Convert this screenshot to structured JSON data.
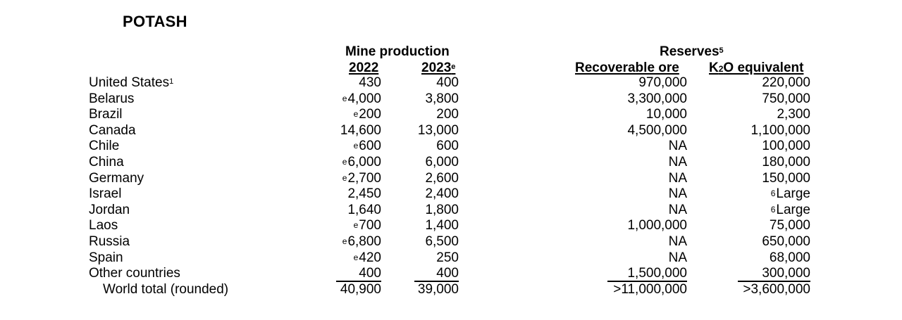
{
  "title": "POTASH",
  "headers": {
    "mine_production": "Mine production",
    "year_2022": "2022",
    "year_2023": "2023",
    "year_2023_sup": "e",
    "reserves": "Reserves",
    "reserves_sup": "5",
    "recoverable_ore": "Recoverable ore",
    "k2o_k": "K",
    "k2o_sub": "2",
    "k2o_rest": "O equivalent"
  },
  "rows": [
    {
      "country": "United States",
      "country_sup": "1",
      "p2022_pre": "",
      "p2022": "430",
      "p2023": "400",
      "ore": "970,000",
      "k2o_pre": "",
      "k2o": "220,000"
    },
    {
      "country": "Belarus",
      "country_sup": "",
      "p2022_pre": "e",
      "p2022": "4,000",
      "p2023": "3,800",
      "ore": "3,300,000",
      "k2o_pre": "",
      "k2o": "750,000"
    },
    {
      "country": "Brazil",
      "country_sup": "",
      "p2022_pre": "e",
      "p2022": "200",
      "p2023": "200",
      "ore": "10,000",
      "k2o_pre": "",
      "k2o": "2,300"
    },
    {
      "country": "Canada",
      "country_sup": "",
      "p2022_pre": "",
      "p2022": "14,600",
      "p2023": "13,000",
      "ore": "4,500,000",
      "k2o_pre": "",
      "k2o": "1,100,000"
    },
    {
      "country": "Chile",
      "country_sup": "",
      "p2022_pre": "e",
      "p2022": "600",
      "p2023": "600",
      "ore": "NA",
      "k2o_pre": "",
      "k2o": "100,000"
    },
    {
      "country": "China",
      "country_sup": "",
      "p2022_pre": "e",
      "p2022": "6,000",
      "p2023": "6,000",
      "ore": "NA",
      "k2o_pre": "",
      "k2o": "180,000"
    },
    {
      "country": "Germany",
      "country_sup": "",
      "p2022_pre": "e",
      "p2022": "2,700",
      "p2023": "2,600",
      "ore": "NA",
      "k2o_pre": "",
      "k2o": "150,000"
    },
    {
      "country": "Israel",
      "country_sup": "",
      "p2022_pre": "",
      "p2022": "2,450",
      "p2023": "2,400",
      "ore": "NA",
      "k2o_pre": "6",
      "k2o": "Large"
    },
    {
      "country": "Jordan",
      "country_sup": "",
      "p2022_pre": "",
      "p2022": "1,640",
      "p2023": "1,800",
      "ore": "NA",
      "k2o_pre": "6",
      "k2o": "Large"
    },
    {
      "country": "Laos",
      "country_sup": "",
      "p2022_pre": "e",
      "p2022": "700",
      "p2023": "1,400",
      "ore": "1,000,000",
      "k2o_pre": "",
      "k2o": "75,000"
    },
    {
      "country": "Russia",
      "country_sup": "",
      "p2022_pre": "e",
      "p2022": "6,800",
      "p2023": "6,500",
      "ore": "NA",
      "k2o_pre": "",
      "k2o": "650,000"
    },
    {
      "country": "Spain",
      "country_sup": "",
      "p2022_pre": "e",
      "p2022": "420",
      "p2023": "250",
      "ore": "NA",
      "k2o_pre": "",
      "k2o": "68,000"
    },
    {
      "country": "Other countries",
      "country_sup": "",
      "p2022_pre": "",
      "p2022": "400",
      "p2023": "400",
      "ore": "1,500,000",
      "k2o_pre": "",
      "k2o": "300,000"
    }
  ],
  "total": {
    "country": "World total (rounded)",
    "p2022": "40,900",
    "p2023": "39,000",
    "ore": ">11,000,000",
    "k2o": ">3,600,000"
  }
}
